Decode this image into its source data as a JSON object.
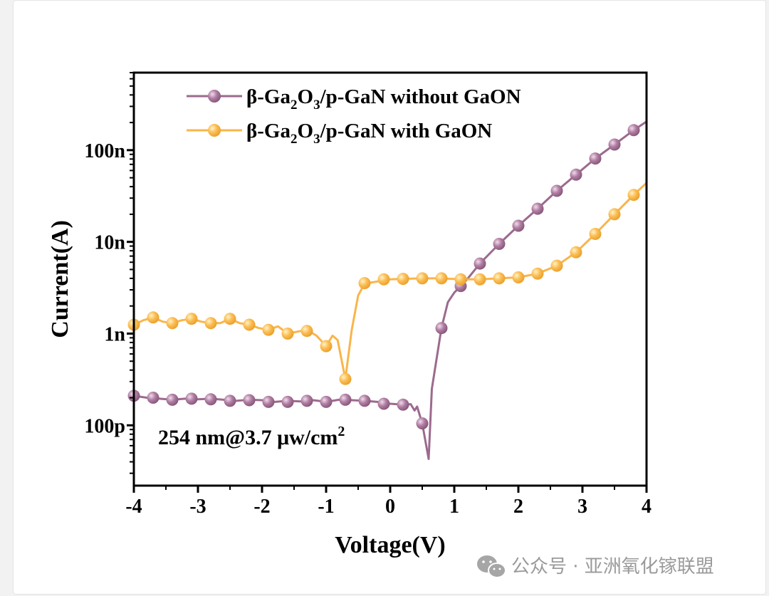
{
  "chart_data": {
    "type": "line",
    "x_scale": "linear",
    "y_scale": "log",
    "xlabel": "Voltage(V)",
    "ylabel": "Current(A)",
    "xlim": [
      -4,
      4
    ],
    "ylim": [
      2.2e-11,
      7e-07
    ],
    "x_ticks": [
      -4,
      -3,
      -2,
      -1,
      0,
      1,
      2,
      3,
      4
    ],
    "x_tick_labels": [
      "-4",
      "-3",
      "-2",
      "-1",
      "0",
      "1",
      "2",
      "3",
      "4"
    ],
    "y_ticks": [
      1e-10,
      1e-09,
      1e-08,
      1e-07
    ],
    "y_tick_labels": [
      "100p",
      "1n",
      "10n",
      "100n"
    ],
    "legend_position": "top-left",
    "annotation": "254 nm@3.7 μw/cm²",
    "series": [
      {
        "name": "β-Ga2O3/p-GaN without GaON",
        "color": "#9c6a8e",
        "line": [
          [
            -4.0,
            2.1e-10
          ],
          [
            -3.8,
            2e-10
          ],
          [
            -3.6,
            1.95e-10
          ],
          [
            -3.4,
            1.9e-10
          ],
          [
            -3.2,
            1.95e-10
          ],
          [
            -3.0,
            1.92e-10
          ],
          [
            -2.8,
            1.95e-10
          ],
          [
            -2.6,
            1.9e-10
          ],
          [
            -2.4,
            1.85e-10
          ],
          [
            -2.2,
            1.9e-10
          ],
          [
            -2.0,
            1.88e-10
          ],
          [
            -1.8,
            1.8e-10
          ],
          [
            -1.6,
            1.85e-10
          ],
          [
            -1.4,
            1.82e-10
          ],
          [
            -1.2,
            1.88e-10
          ],
          [
            -1.0,
            1.8e-10
          ],
          [
            -0.8,
            1.9e-10
          ],
          [
            -0.6,
            1.88e-10
          ],
          [
            -0.4,
            1.85e-10
          ],
          [
            -0.2,
            1.8e-10
          ],
          [
            0.0,
            1.72e-10
          ],
          [
            0.2,
            1.68e-10
          ],
          [
            0.32,
            1.7e-10
          ],
          [
            0.38,
            1.45e-10
          ],
          [
            0.42,
            1.6e-10
          ],
          [
            0.5,
            1.05e-10
          ],
          [
            0.6,
            4.3e-11
          ],
          [
            0.65,
            2.5e-10
          ],
          [
            0.8,
            1.15e-09
          ],
          [
            0.9,
            2.2e-09
          ],
          [
            1.0,
            2.8e-09
          ],
          [
            1.1,
            3.3e-09
          ],
          [
            1.2,
            3.9e-09
          ],
          [
            1.4,
            5.8e-09
          ],
          [
            1.7,
            9.5e-09
          ],
          [
            2.0,
            1.5e-08
          ],
          [
            2.3,
            2.3e-08
          ],
          [
            2.6,
            3.6e-08
          ],
          [
            2.9,
            5.4e-08
          ],
          [
            3.2,
            8.1e-08
          ],
          [
            3.5,
            1.15e-07
          ],
          [
            3.8,
            1.65e-07
          ],
          [
            4.0,
            2.05e-07
          ]
        ],
        "markers": [
          [
            -4.0,
            2.1e-10
          ],
          [
            -3.7,
            2e-10
          ],
          [
            -3.4,
            1.9e-10
          ],
          [
            -3.1,
            1.95e-10
          ],
          [
            -2.8,
            1.92e-10
          ],
          [
            -2.5,
            1.85e-10
          ],
          [
            -2.2,
            1.88e-10
          ],
          [
            -1.9,
            1.8e-10
          ],
          [
            -1.6,
            1.8e-10
          ],
          [
            -1.3,
            1.85e-10
          ],
          [
            -1.0,
            1.8e-10
          ],
          [
            -0.7,
            1.9e-10
          ],
          [
            -0.4,
            1.85e-10
          ],
          [
            -0.1,
            1.72e-10
          ],
          [
            0.2,
            1.68e-10
          ],
          [
            0.5,
            1.05e-10
          ],
          [
            0.8,
            1.15e-09
          ],
          [
            1.1,
            3.3e-09
          ],
          [
            1.4,
            5.8e-09
          ],
          [
            1.7,
            9.5e-09
          ],
          [
            2.0,
            1.5e-08
          ],
          [
            2.3,
            2.3e-08
          ],
          [
            2.6,
            3.6e-08
          ],
          [
            2.9,
            5.4e-08
          ],
          [
            3.2,
            8.1e-08
          ],
          [
            3.5,
            1.15e-07
          ],
          [
            3.8,
            1.65e-07
          ]
        ]
      },
      {
        "name": "β-Ga2O3/p-GaN with GaON",
        "color": "#f9b54a",
        "line": [
          [
            -4.0,
            1.25e-09
          ],
          [
            -3.85,
            1.4e-09
          ],
          [
            -3.7,
            1.5e-09
          ],
          [
            -3.55,
            1.35e-09
          ],
          [
            -3.4,
            1.3e-09
          ],
          [
            -3.25,
            1.4e-09
          ],
          [
            -3.1,
            1.45e-09
          ],
          [
            -2.95,
            1.35e-09
          ],
          [
            -2.8,
            1.3e-09
          ],
          [
            -2.65,
            1.3e-09
          ],
          [
            -2.5,
            1.45e-09
          ],
          [
            -2.35,
            1.3e-09
          ],
          [
            -2.2,
            1.25e-09
          ],
          [
            -2.05,
            1.15e-09
          ],
          [
            -1.9,
            1.1e-09
          ],
          [
            -1.75,
            1.2e-09
          ],
          [
            -1.6,
            1e-09
          ],
          [
            -1.45,
            1.05e-09
          ],
          [
            -1.3,
            1.1e-09
          ],
          [
            -1.15,
            9.5e-10
          ],
          [
            -1.0,
            7.3e-10
          ],
          [
            -0.9,
            9.5e-10
          ],
          [
            -0.82,
            8.5e-10
          ],
          [
            -0.7,
            3.2e-10
          ],
          [
            -0.6,
            1.1e-09
          ],
          [
            -0.5,
            2.6e-09
          ],
          [
            -0.4,
            3.5e-09
          ],
          [
            -0.2,
            3.7e-09
          ],
          [
            -0.1,
            3.9e-09
          ],
          [
            0.0,
            3.9e-09
          ],
          [
            0.2,
            3.95e-09
          ],
          [
            0.5,
            4e-09
          ],
          [
            0.8,
            4e-09
          ],
          [
            1.1,
            3.9e-09
          ],
          [
            1.4,
            3.9e-09
          ],
          [
            1.7,
            4e-09
          ],
          [
            2.0,
            4.1e-09
          ],
          [
            2.3,
            4.5e-09
          ],
          [
            2.6,
            5.5e-09
          ],
          [
            2.9,
            7.7e-09
          ],
          [
            3.2,
            1.22e-08
          ],
          [
            3.5,
            2e-08
          ],
          [
            3.8,
            3.25e-08
          ],
          [
            4.0,
            4.4e-08
          ]
        ],
        "markers": [
          [
            -4.0,
            1.25e-09
          ],
          [
            -3.7,
            1.5e-09
          ],
          [
            -3.4,
            1.3e-09
          ],
          [
            -3.1,
            1.45e-09
          ],
          [
            -2.8,
            1.3e-09
          ],
          [
            -2.5,
            1.45e-09
          ],
          [
            -2.2,
            1.25e-09
          ],
          [
            -1.9,
            1.1e-09
          ],
          [
            -1.6,
            1e-09
          ],
          [
            -1.3,
            1.07e-09
          ],
          [
            -1.0,
            7.3e-10
          ],
          [
            -0.7,
            3.2e-10
          ],
          [
            -0.4,
            3.55e-09
          ],
          [
            -0.1,
            3.9e-09
          ],
          [
            0.2,
            3.95e-09
          ],
          [
            0.5,
            4e-09
          ],
          [
            0.8,
            4e-09
          ],
          [
            1.1,
            3.9e-09
          ],
          [
            1.4,
            3.9e-09
          ],
          [
            1.7,
            4e-09
          ],
          [
            2.0,
            4.1e-09
          ],
          [
            2.3,
            4.5e-09
          ],
          [
            2.6,
            5.5e-09
          ],
          [
            2.9,
            7.7e-09
          ],
          [
            3.2,
            1.22e-08
          ],
          [
            3.5,
            2e-08
          ],
          [
            3.8,
            3.25e-08
          ]
        ]
      }
    ]
  },
  "watermark": {
    "text": "公众号 · 亚洲氧化镓联盟",
    "icon": "wechat-icon"
  }
}
